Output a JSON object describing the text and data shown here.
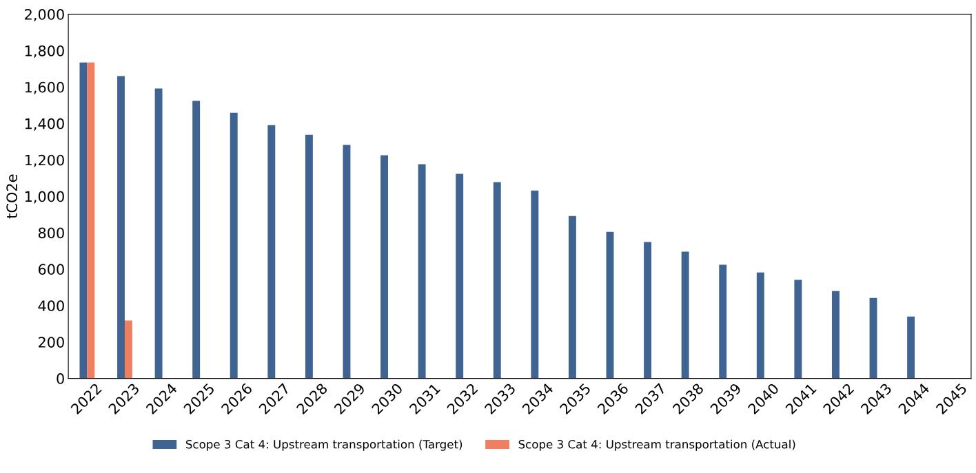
{
  "chart_data": {
    "type": "bar",
    "ylabel": "tCO2e",
    "categories": [
      "2022",
      "2023",
      "2024",
      "2025",
      "2026",
      "2027",
      "2028",
      "2029",
      "2030",
      "2031",
      "2032",
      "2033",
      "2034",
      "2035",
      "2036",
      "2037",
      "2038",
      "2039",
      "2040",
      "2041",
      "2042",
      "2043",
      "2044",
      "2045"
    ],
    "series": [
      {
        "name": "Scope 3 Cat 4: Upstream transportation (Target)",
        "color": "#3f6491",
        "values": [
          1735,
          1660,
          1592,
          1524,
          1459,
          1391,
          1338,
          1282,
          1225,
          1176,
          1123,
          1078,
          1032,
          892,
          805,
          749,
          696,
          624,
          582,
          541,
          480,
          442,
          340,
          null
        ]
      },
      {
        "name": "Scope 3 Cat 4: Upstream transportation (Actual)",
        "color": "#f07f5f",
        "values": [
          1735,
          318,
          null,
          null,
          null,
          null,
          null,
          null,
          null,
          null,
          null,
          null,
          null,
          null,
          null,
          null,
          null,
          null,
          null,
          null,
          null,
          null,
          null,
          null
        ]
      }
    ],
    "ylim": [
      0,
      2000
    ],
    "yticks": [
      {
        "value": 0,
        "label": "0"
      },
      {
        "value": 200,
        "label": "200"
      },
      {
        "value": 400,
        "label": "400"
      },
      {
        "value": 600,
        "label": "600"
      },
      {
        "value": 800,
        "label": "800"
      },
      {
        "value": 1000,
        "label": "1,000"
      },
      {
        "value": 1200,
        "label": "1,200"
      },
      {
        "value": 1400,
        "label": "1,400"
      },
      {
        "value": 1600,
        "label": "1,600"
      },
      {
        "value": 1800,
        "label": "1,800"
      },
      {
        "value": 2000,
        "label": "2,000"
      }
    ],
    "grid": false,
    "legend": "bottom"
  }
}
